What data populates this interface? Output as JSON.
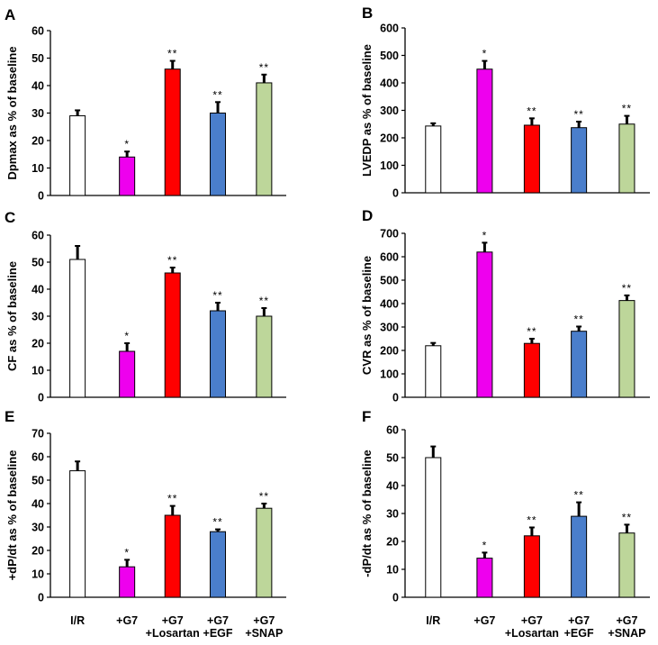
{
  "figure": {
    "categories": [
      [
        "I/R"
      ],
      [
        "+G7"
      ],
      [
        "+G7",
        "+Losartan"
      ],
      [
        "+G7",
        "+EGF"
      ],
      [
        "+G7",
        "+SNAP"
      ]
    ],
    "bar_colors": [
      "#ffffff",
      "#ee00ee",
      "#ff0000",
      "#4a7ecb",
      "#bdd69a"
    ]
  },
  "chart_data": [
    {
      "type": "bar",
      "panel": "A",
      "ylabel": "Dpmax as % of baseline",
      "ylim": [
        0,
        60
      ],
      "yticks": [
        0,
        10,
        20,
        30,
        40,
        50,
        60
      ],
      "values": [
        29,
        14,
        46,
        30,
        41
      ],
      "errors": [
        2,
        2,
        3,
        4,
        3
      ],
      "annotations": [
        "",
        "*",
        "**",
        "**",
        "**"
      ]
    },
    {
      "type": "bar",
      "panel": "B",
      "ylabel": "LVEDP as % of baseline",
      "ylim": [
        0,
        600
      ],
      "yticks": [
        0,
        100,
        200,
        300,
        400,
        500,
        600
      ],
      "values": [
        243,
        450,
        246,
        237,
        250
      ],
      "errors": [
        10,
        30,
        25,
        22,
        30
      ],
      "annotations": [
        "",
        "*",
        "**",
        "**",
        "**"
      ]
    },
    {
      "type": "bar",
      "panel": "C",
      "ylabel": "CF as % of baseline",
      "ylim": [
        0,
        60
      ],
      "yticks": [
        0,
        10,
        20,
        30,
        40,
        50,
        60
      ],
      "values": [
        51,
        17,
        46,
        32,
        30
      ],
      "errors": [
        5,
        3,
        2,
        3,
        3
      ],
      "annotations": [
        "",
        "*",
        "**",
        "**",
        "**"
      ]
    },
    {
      "type": "bar",
      "panel": "D",
      "ylabel": "CVR as % of baseline",
      "ylim": [
        0,
        700
      ],
      "yticks": [
        0,
        100,
        200,
        300,
        400,
        500,
        600,
        700
      ],
      "values": [
        220,
        620,
        230,
        282,
        413
      ],
      "errors": [
        12,
        40,
        20,
        20,
        22
      ],
      "annotations": [
        "",
        "*",
        "**",
        "**",
        "**"
      ]
    },
    {
      "type": "bar",
      "panel": "E",
      "ylabel": "+dP/dt  as % of baseline",
      "ylim": [
        0,
        70
      ],
      "yticks": [
        0,
        10,
        20,
        30,
        40,
        50,
        60,
        70
      ],
      "values": [
        54,
        13,
        35,
        28,
        38
      ],
      "errors": [
        4,
        3,
        4,
        1,
        2
      ],
      "annotations": [
        "",
        "*",
        "**",
        "**",
        "**"
      ]
    },
    {
      "type": "bar",
      "panel": "F",
      "ylabel": "-dP/dt  as % of baseline",
      "ylim": [
        0,
        60
      ],
      "yticks": [
        0,
        10,
        20,
        30,
        40,
        50,
        60
      ],
      "values": [
        50,
        14,
        22,
        29,
        23
      ],
      "errors": [
        4,
        2,
        3,
        5,
        3
      ],
      "annotations": [
        "",
        "*",
        "**",
        "**",
        "**"
      ]
    }
  ]
}
